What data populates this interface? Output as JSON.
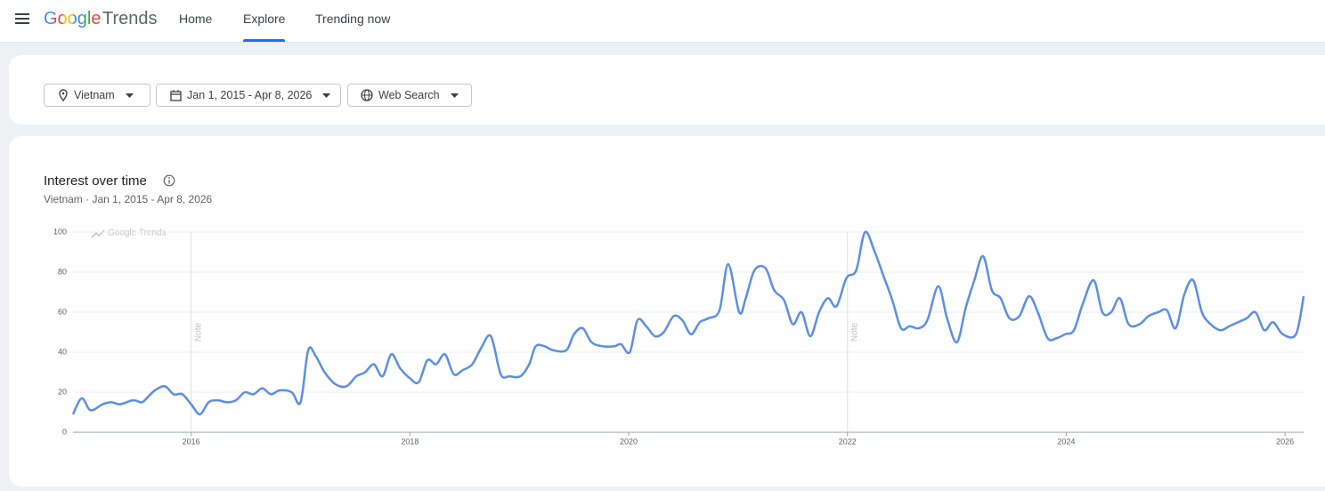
{
  "header": {
    "brand": "Google",
    "product": "Trends",
    "nav": [
      "Home",
      "Explore",
      "Trending now"
    ]
  },
  "filters": [
    "Vietnam",
    "Jan 1, 2015 - Apr 8, 2026",
    "Web Search"
  ],
  "chart_data": {
    "type": "line",
    "title": "Interest over time",
    "subtitle": "Vietnam · Jan 1, 2015 - Apr 8, 2026",
    "watermark": "Google Trends",
    "x": [
      2014.92,
      2015.0,
      2015.08,
      2015.19,
      2015.27,
      2015.35,
      2015.47,
      2015.55,
      2015.61,
      2015.67,
      2015.76,
      2015.84,
      2015.92,
      2016.0,
      2016.08,
      2016.16,
      2016.24,
      2016.33,
      2016.41,
      2016.49,
      2016.57,
      2016.65,
      2016.73,
      2016.81,
      2016.92,
      2017.0,
      2017.07,
      2017.14,
      2017.22,
      2017.32,
      2017.42,
      2017.51,
      2017.59,
      2017.67,
      2017.75,
      2017.83,
      2017.91,
      2018.0,
      2018.08,
      2018.16,
      2018.24,
      2018.32,
      2018.4,
      2018.48,
      2018.57,
      2018.65,
      2018.74,
      2018.83,
      2018.91,
      2019.01,
      2019.09,
      2019.15,
      2019.23,
      2019.31,
      2019.43,
      2019.5,
      2019.58,
      2019.66,
      2019.76,
      2019.87,
      2019.93,
      2020.01,
      2020.08,
      2020.16,
      2020.24,
      2020.32,
      2020.41,
      2020.49,
      2020.57,
      2020.65,
      2020.73,
      2020.83,
      2020.91,
      2021.01,
      2021.07,
      2021.15,
      2021.25,
      2021.33,
      2021.42,
      2021.5,
      2021.58,
      2021.66,
      2021.74,
      2021.82,
      2021.9,
      2021.99,
      2022.08,
      2022.16,
      2022.25,
      2022.33,
      2022.41,
      2022.49,
      2022.57,
      2022.65,
      2022.73,
      2022.83,
      2022.91,
      2023.0,
      2023.08,
      2023.16,
      2023.24,
      2023.32,
      2023.4,
      2023.48,
      2023.57,
      2023.66,
      2023.74,
      2023.83,
      2023.91,
      2023.99,
      2024.07,
      2024.15,
      2024.25,
      2024.33,
      2024.41,
      2024.49,
      2024.57,
      2024.67,
      2024.75,
      2024.84,
      2024.92,
      2025.0,
      2025.08,
      2025.16,
      2025.24,
      2025.32,
      2025.41,
      2025.49,
      2025.57,
      2025.65,
      2025.73,
      2025.81,
      2025.89,
      2025.98,
      2026.1,
      2026.17
    ],
    "series": [
      {
        "color": "#5b8ee6",
        "values": [
          9,
          17,
          11,
          14,
          15,
          14,
          16,
          15,
          18,
          21,
          23,
          19,
          19,
          14,
          9,
          15,
          16,
          15,
          16,
          20,
          19,
          22,
          19,
          21,
          20,
          15,
          41,
          38,
          30,
          24,
          23,
          28,
          30,
          34,
          28,
          39,
          32,
          27,
          25,
          36,
          34,
          39,
          29,
          31,
          34,
          42,
          48,
          29,
          28,
          28,
          34,
          43,
          43,
          41,
          41,
          49,
          52,
          45,
          43,
          43,
          44,
          40,
          56,
          53,
          48,
          50,
          58,
          56,
          49,
          55,
          57,
          61,
          84,
          60,
          67,
          81,
          82,
          71,
          66,
          54,
          60,
          48,
          60,
          67,
          63,
          77,
          81,
          100,
          90,
          78,
          66,
          52,
          53,
          52,
          56,
          73,
          57,
          45,
          62,
          76,
          88,
          71,
          67,
          57,
          58,
          68,
          60,
          47,
          47,
          49,
          51,
          64,
          76,
          60,
          60,
          67,
          54,
          54,
          58,
          60,
          61,
          52,
          69,
          76,
          60,
          54,
          51,
          53,
          55,
          57,
          60,
          51,
          55,
          49,
          49,
          68
        ]
      }
    ],
    "xlim": [
      2014.92,
      2026.17
    ],
    "xticks": [
      2016,
      2018,
      2020,
      2022,
      2024,
      2026
    ],
    "ylim": [
      0,
      100
    ],
    "yticks": [
      0,
      20,
      40,
      60,
      80,
      100
    ],
    "grid": true,
    "annotations": [
      {
        "x": 2016,
        "text": "Note"
      },
      {
        "x": 2022,
        "text": "Note"
      }
    ]
  }
}
